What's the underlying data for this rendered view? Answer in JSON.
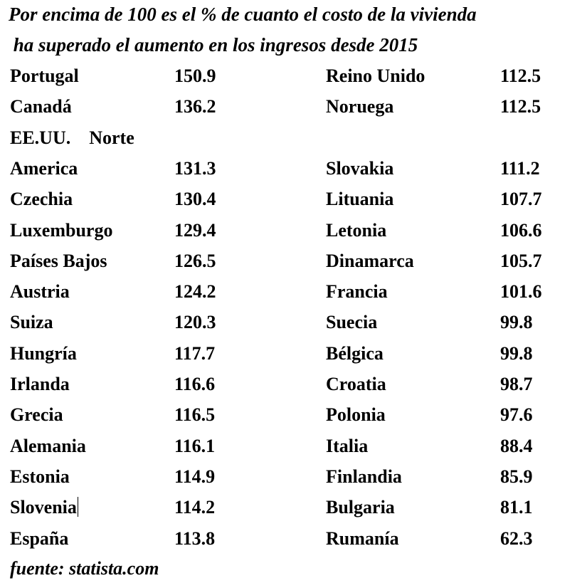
{
  "title_line1": "Por encima de 100 es el % de cuanto el costo de la vivienda",
  "title_line2": " ha superado el aumento en los ingresos desde 2015",
  "rows": [
    {
      "left_name": "Portugal",
      "left_value": "150.9",
      "right_name": "Reino Unido",
      "right_value": "112.5"
    },
    {
      "left_name": "Canadá",
      "left_value": "136.2",
      "right_name": "Noruega",
      "right_value": "112.5"
    },
    {
      "left_name": "EE.UU.    Norte",
      "left_value": "",
      "right_name": "",
      "right_value": ""
    },
    {
      "left_name": "America",
      "left_value": "131.3",
      "right_name": "Slovakia",
      "right_value": "111.2"
    },
    {
      "left_name": "Czechia",
      "left_value": "130.4",
      "right_name": "Lituania",
      "right_value": "107.7"
    },
    {
      "left_name": "Luxemburgo",
      "left_value": "129.4",
      "right_name": "Letonia",
      "right_value": "106.6"
    },
    {
      "left_name": "Países Bajos",
      "left_value": "126.5",
      "right_name": "Dinamarca",
      "right_value": "105.7"
    },
    {
      "left_name": "Austria",
      "left_value": "124.2",
      "right_name": "Francia",
      "right_value": "101.6"
    },
    {
      "left_name": "Suiza",
      "left_value": "120.3",
      "right_name": "Suecia",
      "right_value": "99.8"
    },
    {
      "left_name": "Hungría",
      "left_value": "117.7",
      "right_name": "Bélgica",
      "right_value": "99.8"
    },
    {
      "left_name": "Irlanda",
      "left_value": "116.6",
      "right_name": "Croatia",
      "right_value": "98.7"
    },
    {
      "left_name": "Grecia",
      "left_value": "116.5",
      "right_name": "Polonia",
      "right_value": "97.6"
    },
    {
      "left_name": "Alemania",
      "left_value": "116.1",
      "right_name": "Italia",
      "right_value": "88.4"
    },
    {
      "left_name": "Estonia",
      "left_value": "114.9",
      "right_name": "Finlandia",
      "right_value": "85.9"
    },
    {
      "left_name": "Slovenia",
      "left_value": "114.2",
      "right_name": "Bulgaria",
      "right_value": "81.1"
    },
    {
      "left_name": "España",
      "left_value": "113.8",
      "right_name": "Rumanía",
      "right_value": "62.3"
    }
  ],
  "footer": "fuente: statista.com"
}
